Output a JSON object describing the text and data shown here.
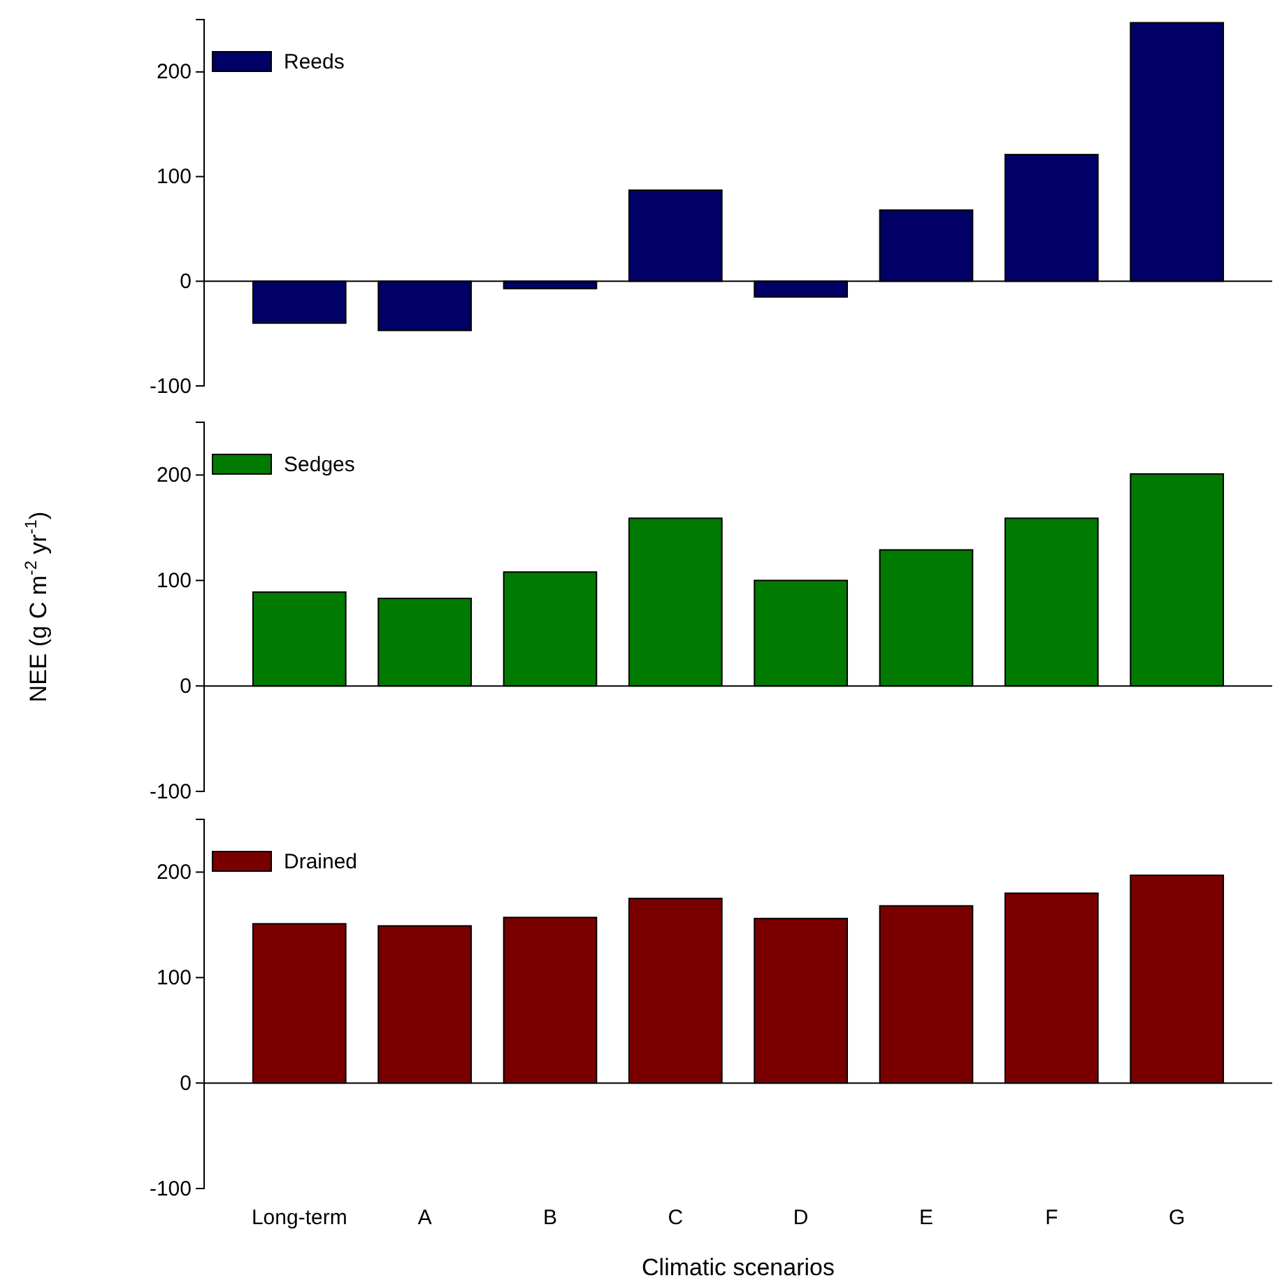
{
  "chart_data": [
    {
      "type": "bar",
      "categories": [
        null,
        null,
        null,
        null,
        null,
        null,
        null,
        null
      ],
      "series": [
        {
          "name": "Reeds",
          "color": "#000066",
          "values": [
            -40,
            -47,
            -7,
            87,
            -15,
            68,
            121,
            247
          ]
        }
      ],
      "ylim": [
        -100,
        250
      ],
      "yticks": [
        -100,
        0,
        100,
        200
      ],
      "tick_labels": "y",
      "legend": "top left"
    },
    {
      "type": "bar",
      "categories": [
        null,
        null,
        null,
        null,
        null,
        null,
        null,
        null
      ],
      "series": [
        {
          "name": "Sedges",
          "color": "#007a00",
          "values": [
            89,
            83,
            108,
            159,
            100,
            129,
            159,
            201
          ]
        }
      ],
      "ylim": [
        -100,
        250
      ],
      "yticks": [
        -100,
        0,
        100,
        200
      ],
      "tick_labels": "y",
      "legend": "top left",
      "ylabel": "NEE (g C m$^{-2}$ yr$^{-1}$)"
    },
    {
      "type": "bar",
      "categories": [
        "Long-term",
        "A",
        "B",
        "C",
        "D",
        "E",
        "F",
        "G"
      ],
      "series": [
        {
          "name": "Drained",
          "color": "#7a0000",
          "values": [
            151,
            149,
            157,
            175,
            156,
            168,
            180,
            197
          ]
        }
      ],
      "ylim": [
        -100,
        250
      ],
      "yticks": [
        -100,
        0,
        100,
        200
      ],
      "legend": "top left",
      "xlabel": "Climatic scenarios"
    }
  ]
}
